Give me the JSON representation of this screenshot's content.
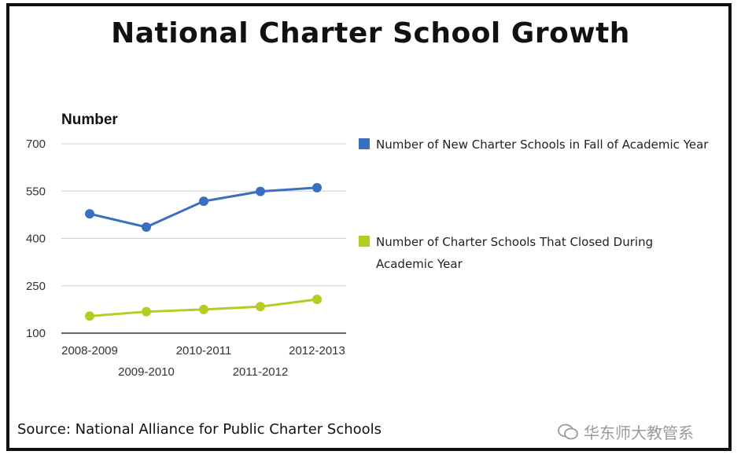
{
  "chart_data": {
    "type": "line",
    "title": "National Charter School Growth",
    "ylabel": "Number",
    "categories": [
      "2008-2009",
      "2009-2010",
      "2010-2011",
      "2011-2012",
      "2012-2013"
    ],
    "yticks": [
      700,
      550,
      400,
      250,
      100
    ],
    "ylim": [
      100,
      700
    ],
    "grid": true,
    "legend_position": "right",
    "series": [
      {
        "name": "Number of New Charter Schools in Fall of Academic Year",
        "color": "#3a6fc0",
        "values": [
          478,
          436,
          518,
          549,
          561
        ]
      },
      {
        "name": "Number of Charter Schools That Closed During Academic Year",
        "color": "#b7cc22",
        "values": [
          154,
          168,
          175,
          184,
          207
        ]
      }
    ]
  },
  "legend": {
    "item1": "Number of New Charter Schools in Fall of Academic Year",
    "item2": "Number of Charter Schools That Closed During Academic Year"
  },
  "source": "Source: National Alliance for Public Charter Schools",
  "watermark": "华东师大教管系"
}
